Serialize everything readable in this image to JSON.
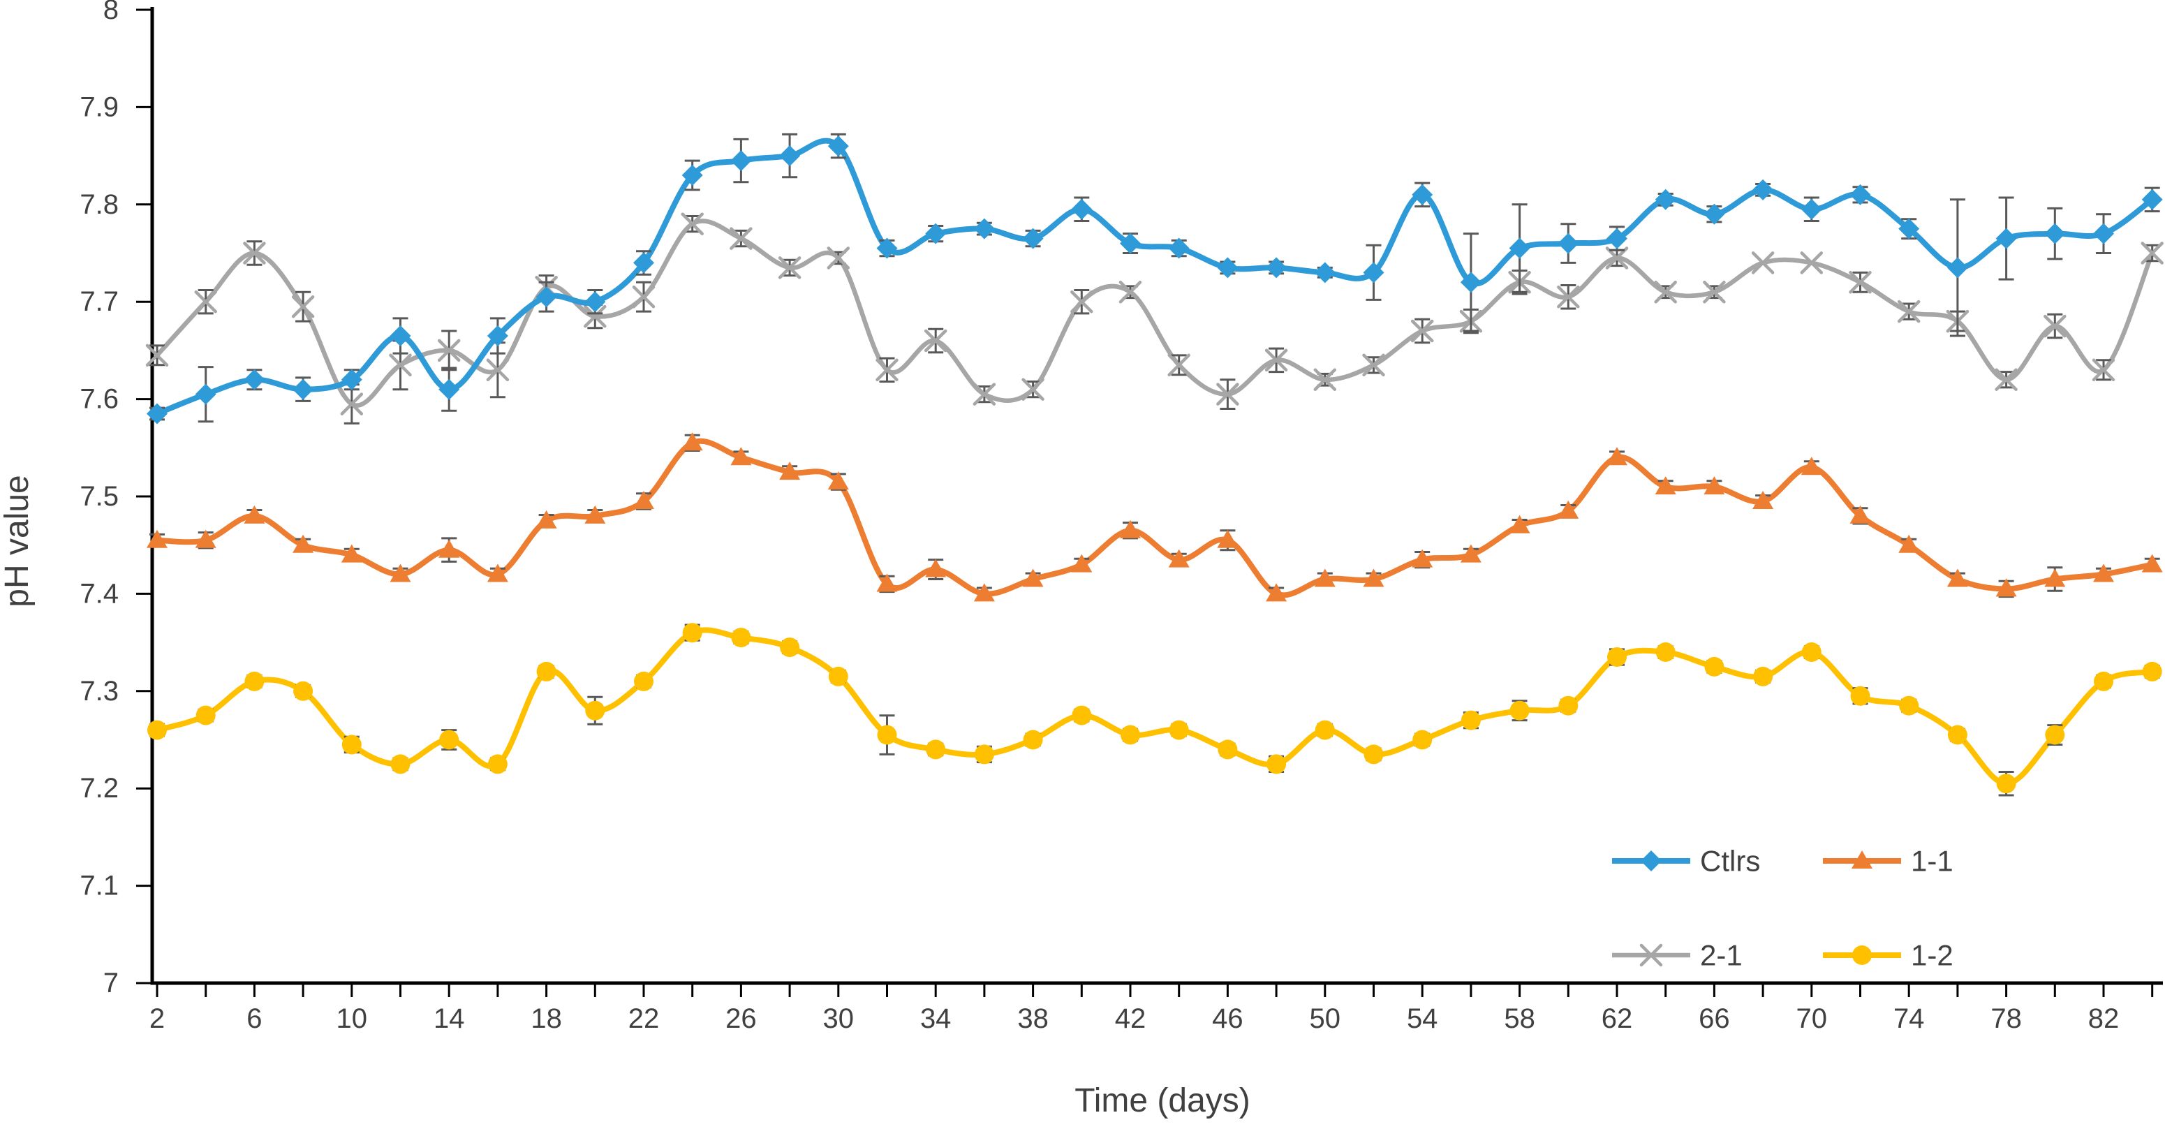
{
  "figure": {
    "background": "#ffffff",
    "axis_color": "#000000",
    "text_color": "#404040",
    "error_bar_color": "#595959"
  },
  "axes": {
    "y_label": "pH value",
    "x_label": "Time (days)",
    "y_tick_labels": [
      "8",
      "7.9",
      "7.8",
      "7.7",
      "7.6",
      "7.5",
      "7.4",
      "7.3",
      "7.2",
      "7.1",
      "7"
    ],
    "y_tick_values": [
      8,
      7.9,
      7.8,
      7.7,
      7.6,
      7.5,
      7.4,
      7.3,
      7.2,
      7.1,
      7
    ],
    "x_tick_label_values": [
      2,
      6,
      10,
      14,
      18,
      22,
      26,
      30,
      34,
      38,
      42,
      46,
      50,
      54,
      58,
      62,
      66,
      70,
      74,
      78,
      82
    ],
    "x_tick_labels": [
      "2",
      "6",
      "10",
      "14",
      "18",
      "22",
      "26",
      "30",
      "34",
      "38",
      "42",
      "46",
      "50",
      "54",
      "58",
      "62",
      "66",
      "70",
      "74",
      "78",
      "82"
    ],
    "x_minor_tick_step": 2
  },
  "chart_data": {
    "type": "line",
    "title": "",
    "xlabel": "Time (days)",
    "ylabel": "pH value",
    "xlim": [
      2,
      84
    ],
    "ylim": [
      7,
      8
    ],
    "grid": false,
    "legend_position": "inside-bottom-right",
    "line_style": "smooth",
    "error_bars": true,
    "x": [
      2,
      4,
      6,
      8,
      10,
      12,
      14,
      16,
      18,
      20,
      22,
      24,
      26,
      28,
      30,
      32,
      34,
      36,
      38,
      40,
      42,
      44,
      46,
      48,
      50,
      52,
      54,
      56,
      58,
      60,
      62,
      64,
      66,
      68,
      70,
      72,
      74,
      76,
      78,
      80,
      82,
      84
    ],
    "series": [
      {
        "name": "Ctlrs",
        "color": "#2E9AD7",
        "marker": "diamond",
        "line_width": 8,
        "values": [
          7.585,
          7.605,
          7.62,
          7.61,
          7.62,
          7.665,
          7.61,
          7.665,
          7.705,
          7.7,
          7.74,
          7.83,
          7.845,
          7.85,
          7.86,
          7.755,
          7.77,
          7.775,
          7.765,
          7.795,
          7.76,
          7.755,
          7.735,
          7.735,
          7.73,
          7.73,
          7.81,
          7.72,
          7.755,
          7.76,
          7.765,
          7.805,
          7.79,
          7.815,
          7.795,
          7.81,
          7.775,
          7.735,
          7.765,
          7.77,
          7.77,
          7.805
        ],
        "errors": [
          0.006,
          0.028,
          0.01,
          0.012,
          0.01,
          0.018,
          0.022,
          0.018,
          0.015,
          0.012,
          0.012,
          0.015,
          0.022,
          0.022,
          0.012,
          0.008,
          0.008,
          0.006,
          0.008,
          0.012,
          0.01,
          0.008,
          0.006,
          0.006,
          0.005,
          0.028,
          0.012,
          0.05,
          0.045,
          0.02,
          0.012,
          0.006,
          0.008,
          0.006,
          0.012,
          0.008,
          0.01,
          0.07,
          0.042,
          0.026,
          0.02,
          0.012
        ]
      },
      {
        "name": "1-1",
        "color": "#ED7D31",
        "marker": "triangle",
        "line_width": 8,
        "values": [
          7.455,
          7.455,
          7.48,
          7.45,
          7.44,
          7.42,
          7.445,
          7.42,
          7.475,
          7.48,
          7.495,
          7.555,
          7.54,
          7.525,
          7.515,
          7.41,
          7.425,
          7.4,
          7.415,
          7.43,
          7.465,
          7.435,
          7.455,
          7.4,
          7.415,
          7.415,
          7.435,
          7.44,
          7.47,
          7.485,
          7.54,
          7.51,
          7.51,
          7.495,
          7.53,
          7.48,
          7.45,
          7.415,
          7.405,
          7.415,
          7.42,
          7.43
        ],
        "errors": [
          0.006,
          0.008,
          0.006,
          0.006,
          0.006,
          0.006,
          0.012,
          0.006,
          0.006,
          0.006,
          0.008,
          0.008,
          0.006,
          0.006,
          0.008,
          0.008,
          0.01,
          0.006,
          0.006,
          0.006,
          0.008,
          0.006,
          0.01,
          0.006,
          0.006,
          0.006,
          0.008,
          0.006,
          0.006,
          0.006,
          0.006,
          0.006,
          0.006,
          0.006,
          0.006,
          0.008,
          0.006,
          0.006,
          0.008,
          0.012,
          0.006,
          0.006
        ]
      },
      {
        "name": "2-1",
        "color": "#A6A6A6",
        "marker": "x",
        "line_width": 6.5,
        "values": [
          7.645,
          7.7,
          7.75,
          7.695,
          7.595,
          7.635,
          7.65,
          7.63,
          7.715,
          7.685,
          7.705,
          7.78,
          7.765,
          7.735,
          7.745,
          7.63,
          7.66,
          7.605,
          7.61,
          7.7,
          7.71,
          7.635,
          7.605,
          7.64,
          7.62,
          7.635,
          7.67,
          7.68,
          7.72,
          7.705,
          7.745,
          7.71,
          7.71,
          7.74,
          7.74,
          7.72,
          7.69,
          7.68,
          7.62,
          7.675,
          7.63,
          7.75
        ],
        "errors": [
          0.01,
          0.012,
          0.012,
          0.015,
          0.02,
          0.025,
          0.02,
          0.028,
          0.012,
          0.012,
          0.015,
          0.008,
          0.008,
          0.008,
          0.006,
          0.012,
          0.012,
          0.008,
          0.008,
          0.012,
          0.006,
          0.01,
          0.015,
          0.012,
          0.006,
          0.008,
          0.012,
          0.012,
          0.012,
          0.012,
          0.008,
          0.006,
          0.006,
          0.003,
          0.003,
          0.01,
          0.008,
          0.01,
          0.008,
          0.012,
          0.01,
          0.008
        ]
      },
      {
        "name": "1-2",
        "color": "#FFC000",
        "marker": "circle",
        "line_width": 8,
        "values": [
          7.26,
          7.275,
          7.31,
          7.3,
          7.245,
          7.225,
          7.25,
          7.225,
          7.32,
          7.28,
          7.31,
          7.36,
          7.355,
          7.345,
          7.315,
          7.255,
          7.24,
          7.235,
          7.25,
          7.275,
          7.255,
          7.26,
          7.24,
          7.225,
          7.26,
          7.235,
          7.25,
          7.27,
          7.28,
          7.285,
          7.335,
          7.34,
          7.325,
          7.315,
          7.34,
          7.295,
          7.285,
          7.255,
          7.205,
          7.255,
          7.31,
          7.32
        ],
        "errors": [
          0.006,
          0.006,
          0.006,
          0.006,
          0.008,
          0.006,
          0.01,
          0.006,
          0.006,
          0.014,
          0.006,
          0.008,
          0.006,
          0.006,
          0.006,
          0.02,
          0.006,
          0.008,
          0.006,
          0.006,
          0.006,
          0.006,
          0.006,
          0.008,
          0.006,
          0.006,
          0.006,
          0.008,
          0.01,
          0.006,
          0.008,
          0.006,
          0.006,
          0.006,
          0.006,
          0.008,
          0.006,
          0.006,
          0.012,
          0.01,
          0.006,
          0.006
        ]
      }
    ]
  },
  "legend": {
    "entries": [
      {
        "label": "Ctlrs",
        "series_index": 0
      },
      {
        "label": "1-1",
        "series_index": 1
      },
      {
        "label": "2-1",
        "series_index": 2
      },
      {
        "label": "1-2",
        "series_index": 3
      }
    ]
  }
}
